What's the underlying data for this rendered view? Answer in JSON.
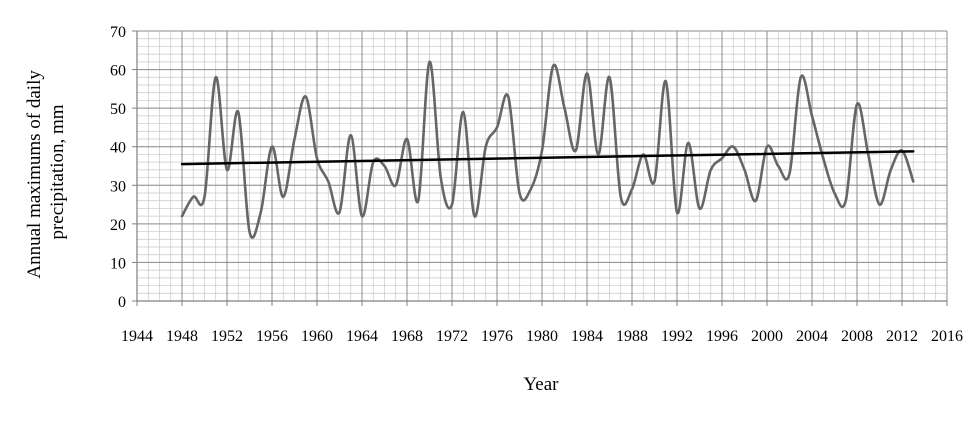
{
  "chart_data": {
    "type": "line",
    "title": "",
    "xlabel": "Year",
    "ylabel": "Annual maximums of daily precipitation, mm",
    "ylabel_lines": [
      "Annual maximums of daily",
      "precipitation, mm"
    ],
    "xlim": [
      1944,
      2016
    ],
    "ylim": [
      0,
      70
    ],
    "x_ticks": [
      1944,
      1948,
      1952,
      1956,
      1960,
      1964,
      1968,
      1972,
      1976,
      1980,
      1984,
      1988,
      1992,
      1996,
      2000,
      2004,
      2008,
      2012,
      2016
    ],
    "x_tick_labels": [
      "1944",
      "1948",
      "1952",
      "1956",
      "1960",
      "1964",
      "1968",
      "1972",
      "1976",
      "1980",
      "1984",
      "1988",
      "1992",
      "1996",
      "2000",
      "2004",
      "2008",
      "2012",
      "2016"
    ],
    "y_ticks": [
      0,
      10,
      20,
      30,
      40,
      50,
      60,
      70
    ],
    "y_tick_labels": [
      "0",
      "10",
      "20",
      "30",
      "40",
      "50",
      "60",
      "70"
    ],
    "grid": true,
    "legend": "none",
    "series": [
      {
        "color": "#666666",
        "x": [
          1948,
          1949,
          1950,
          1951,
          1952,
          1953,
          1954,
          1955,
          1956,
          1957,
          1958,
          1959,
          1960,
          1961,
          1962,
          1963,
          1964,
          1965,
          1966,
          1967,
          1968,
          1969,
          1970,
          1971,
          1972,
          1973,
          1974,
          1975,
          1976,
          1977,
          1978,
          1979,
          1980,
          1981,
          1982,
          1983,
          1984,
          1985,
          1986,
          1987,
          1988,
          1989,
          1990,
          1991,
          1992,
          1993,
          1994,
          1995,
          1996,
          1997,
          1998,
          1999,
          2000,
          2001,
          2002,
          2003,
          2004,
          2005,
          2006,
          2007,
          2008,
          2009,
          2010,
          2011,
          2012,
          2013
        ],
        "y": [
          22,
          27,
          27,
          58,
          34,
          49,
          18,
          23,
          40,
          27,
          42,
          53,
          37,
          31,
          23,
          43,
          22,
          36,
          35,
          30,
          42,
          26,
          62,
          32,
          25,
          49,
          22,
          40,
          45,
          53,
          28,
          29,
          39,
          61,
          50,
          39,
          59,
          38,
          58,
          27,
          29,
          38,
          31,
          57,
          23,
          41,
          24,
          34,
          37,
          40,
          34,
          26,
          40,
          35,
          33,
          58,
          48,
          37,
          28,
          26,
          51,
          38,
          25,
          34,
          39,
          31
        ]
      },
      {
        "type": "trend",
        "color": "#000000",
        "x": [
          1948,
          2013
        ],
        "y": [
          35.5,
          38.8
        ]
      }
    ]
  }
}
